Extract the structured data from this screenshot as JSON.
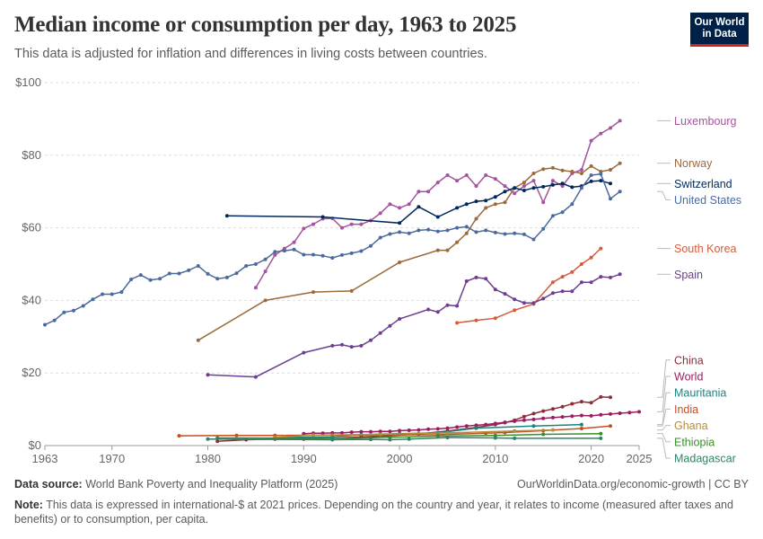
{
  "header": {
    "title": "Median income or consumption per day, 1963 to 2025",
    "subtitle": "This data is adjusted for inflation and differences in living costs between countries.",
    "logo_line1": "Our World",
    "logo_line2": "in Data"
  },
  "footer": {
    "source_label": "Data source:",
    "source_text": "World Bank Poverty and Inequality Platform (2025)",
    "url": "OurWorldinData.org/economic-growth | CC BY",
    "note_label": "Note:",
    "note_text": "This data is expressed in international-$ at 2021 prices. Depending on the country and year, it relates to income (measured after taxes and benefits) or to consumption, per capita."
  },
  "chart_data": {
    "type": "line",
    "title": "Median income or consumption per day, 1963 to 2025",
    "xlabel": "",
    "ylabel": "",
    "xlim": [
      1963,
      2025
    ],
    "ylim": [
      0,
      100
    ],
    "x_ticks": [
      "1963",
      "1970",
      "1980",
      "1990",
      "2000",
      "2010",
      "2020",
      "2025"
    ],
    "y_ticks": [
      "$0",
      "$20",
      "$40",
      "$60",
      "$80",
      "$100"
    ],
    "grid": "horizontal-dashed",
    "legend": "right, end-of-line labels",
    "series": [
      {
        "name": "Luxembourg",
        "color": "#a2559c",
        "x": [
          1985,
          1986,
          1987,
          1988,
          1989,
          1990,
          1991,
          1992,
          1993,
          1994,
          1995,
          1996,
          1997,
          1998,
          1999,
          2000,
          2001,
          2002,
          2003,
          2004,
          2005,
          2006,
          2007,
          2008,
          2009,
          2010,
          2011,
          2012,
          2013,
          2014,
          2015,
          2016,
          2017,
          2018,
          2019,
          2020,
          2021,
          2022,
          2023
        ],
        "y": [
          43.5,
          48,
          52.5,
          54.3,
          56,
          59.8,
          61,
          62.5,
          62.6,
          60,
          61,
          61,
          62,
          64,
          66.5,
          65.5,
          66.5,
          70,
          70,
          72.5,
          74.5,
          73,
          74.5,
          71.5,
          74.5,
          73.5,
          71.5,
          69.5,
          71.5,
          73,
          67,
          73,
          71.5,
          75,
          76,
          84,
          86,
          87.5,
          89.5
        ]
      },
      {
        "name": "Norway",
        "color": "#9a6a3a",
        "x": [
          1979,
          1986,
          1991,
          1995,
          2000,
          2004,
          2005,
          2006,
          2007,
          2008,
          2009,
          2010,
          2011,
          2012,
          2013,
          2014,
          2015,
          2016,
          2017,
          2018,
          2019,
          2020,
          2021,
          2022,
          2023
        ],
        "y": [
          29,
          40,
          42.3,
          42.6,
          50.5,
          53.8,
          53.8,
          56,
          58.5,
          62.5,
          65.5,
          66.5,
          67,
          71,
          72.5,
          75,
          76.2,
          76.5,
          75.8,
          75.5,
          75,
          77,
          75.5,
          76,
          77.8
        ]
      },
      {
        "name": "Switzerland",
        "color": "#00295b",
        "x": [
          1982,
          1992,
          2000,
          2002,
          2004,
          2006,
          2007,
          2008,
          2009,
          2010,
          2011,
          2012,
          2013,
          2014,
          2015,
          2016,
          2017,
          2018,
          2019,
          2020,
          2021,
          2022
        ],
        "y": [
          63.3,
          63,
          61.3,
          65.8,
          63,
          65.5,
          66.5,
          67.3,
          67.5,
          68.5,
          70,
          71,
          70.3,
          71,
          71.3,
          71.8,
          72.2,
          71.2,
          71.5,
          72.8,
          73,
          72.2
        ]
      },
      {
        "name": "United States",
        "color": "#4c6a9c",
        "x": [
          1963,
          1964,
          1965,
          1966,
          1967,
          1968,
          1969,
          1970,
          1971,
          1972,
          1973,
          1974,
          1975,
          1976,
          1977,
          1978,
          1979,
          1980,
          1981,
          1982,
          1983,
          1984,
          1985,
          1986,
          1987,
          1988,
          1989,
          1990,
          1991,
          1992,
          1993,
          1994,
          1995,
          1996,
          1997,
          1998,
          1999,
          2000,
          2001,
          2002,
          2003,
          2004,
          2005,
          2006,
          2007,
          2008,
          2009,
          2010,
          2011,
          2012,
          2013,
          2014,
          2015,
          2016,
          2017,
          2018,
          2019,
          2020,
          2021,
          2022,
          2023
        ],
        "y": [
          33.3,
          34.5,
          36.7,
          37.2,
          38.5,
          40.3,
          41.7,
          41.7,
          42.3,
          45.8,
          47,
          45.6,
          46,
          47.4,
          47.4,
          48.3,
          49.5,
          47.3,
          46,
          46.3,
          47.5,
          49.5,
          50,
          51.3,
          53.4,
          53.7,
          54,
          52.6,
          52.6,
          52.3,
          51.7,
          52.5,
          53,
          53.6,
          55,
          57.3,
          58.3,
          58.8,
          58.5,
          59.3,
          59.5,
          59,
          59.3,
          60,
          60.3,
          58.8,
          59.3,
          58.7,
          58.3,
          58.5,
          58.2,
          56.8,
          59.7,
          63.3,
          64.3,
          66.5,
          71,
          74.5,
          74.8,
          68,
          70
        ]
      },
      {
        "name": "South Korea",
        "color": "#d25c3c",
        "x": [
          2006,
          2008,
          2010,
          2012,
          2014,
          2016,
          2017,
          2018,
          2019,
          2020,
          2021
        ],
        "y": [
          33.8,
          34.5,
          35.1,
          37.3,
          39,
          45,
          46.5,
          47.8,
          50,
          51.8,
          54.3
        ]
      },
      {
        "name": "Spain",
        "color": "#6d3e91",
        "x": [
          1980,
          1985,
          1990,
          1993,
          1994,
          1995,
          1996,
          1997,
          1998,
          1999,
          2000,
          2003,
          2004,
          2005,
          2006,
          2007,
          2008,
          2009,
          2010,
          2011,
          2012,
          2013,
          2014,
          2015,
          2016,
          2017,
          2018,
          2019,
          2020,
          2021,
          2022,
          2023
        ],
        "y": [
          19.5,
          18.9,
          25.6,
          27.5,
          27.8,
          27.2,
          27.5,
          29,
          31,
          33,
          34.9,
          37.5,
          36.8,
          38.7,
          38.5,
          45.3,
          46.3,
          46,
          43,
          41.8,
          40.3,
          39.3,
          39.3,
          40.5,
          42,
          42.5,
          42.5,
          45,
          45,
          46.5,
          46.3,
          47.2
        ]
      },
      {
        "name": "China",
        "color": "#883039",
        "x": [
          1981,
          1984,
          1987,
          1990,
          1993,
          1996,
          1999,
          2002,
          2005,
          2008,
          2010,
          2011,
          2012,
          2013,
          2014,
          2015,
          2016,
          2017,
          2018,
          2019,
          2020,
          2021,
          2022
        ],
        "y": [
          1.2,
          1.6,
          1.8,
          1.8,
          2.0,
          2.4,
          2.7,
          3.2,
          4.0,
          5.0,
          5.8,
          6.3,
          7.0,
          8.0,
          8.8,
          9.5,
          10.1,
          10.7,
          11.5,
          12.1,
          11.8,
          13.4,
          13.3
        ]
      },
      {
        "name": "World",
        "color": "#9a1e60",
        "x": [
          1990,
          1991,
          1992,
          1993,
          1994,
          1995,
          1996,
          1997,
          1998,
          1999,
          2000,
          2001,
          2002,
          2003,
          2004,
          2005,
          2006,
          2007,
          2008,
          2009,
          2010,
          2011,
          2012,
          2013,
          2014,
          2015,
          2016,
          2017,
          2018,
          2019,
          2020,
          2021,
          2022,
          2023,
          2024,
          2025
        ],
        "y": [
          3.3,
          3.4,
          3.4,
          3.5,
          3.5,
          3.7,
          3.8,
          3.8,
          3.9,
          3.9,
          4.1,
          4.2,
          4.3,
          4.5,
          4.6,
          4.8,
          5.1,
          5.4,
          5.6,
          5.8,
          6.1,
          6.4,
          6.7,
          7.0,
          7.2,
          7.5,
          7.7,
          7.9,
          8.1,
          8.3,
          8.2,
          8.5,
          8.7,
          8.9,
          9.1,
          9.3
        ]
      },
      {
        "name": "Mauritania",
        "color": "#18857f",
        "x": [
          1987,
          1993,
          1996,
          2000,
          2004,
          2008,
          2014,
          2019
        ],
        "y": [
          2.2,
          2.4,
          3.0,
          3.3,
          3.5,
          4.8,
          5.4,
          5.8
        ]
      },
      {
        "name": "India",
        "color": "#c15025",
        "x": [
          1977,
          1983,
          1987,
          1993,
          2004,
          2009,
          2011,
          2015,
          2019,
          2022
        ],
        "y": [
          2.7,
          2.8,
          2.8,
          2.9,
          3.0,
          3.4,
          3.6,
          4.1,
          4.7,
          5.4
        ]
      },
      {
        "name": "Ghana",
        "color": "#b48c3c",
        "x": [
          1987,
          1988,
          1991,
          1998,
          2005,
          2012,
          2016
        ],
        "y": [
          2.2,
          2.4,
          2.9,
          3.1,
          3.5,
          4.0,
          4.3
        ]
      },
      {
        "name": "Ethiopia",
        "color": "#3a8e2a",
        "x": [
          1981,
          1995,
          1999,
          2004,
          2010,
          2015,
          2021
        ],
        "y": [
          2.1,
          2.0,
          2.3,
          2.6,
          2.8,
          3.1,
          3.3
        ]
      },
      {
        "name": "Madagascar",
        "color": "#2c8465",
        "x": [
          1980,
          1993,
          1997,
          1999,
          2001,
          2005,
          2010,
          2012,
          2021
        ],
        "y": [
          1.8,
          1.6,
          1.7,
          1.6,
          1.8,
          2.2,
          2.1,
          2.0,
          2.0
        ]
      }
    ]
  }
}
